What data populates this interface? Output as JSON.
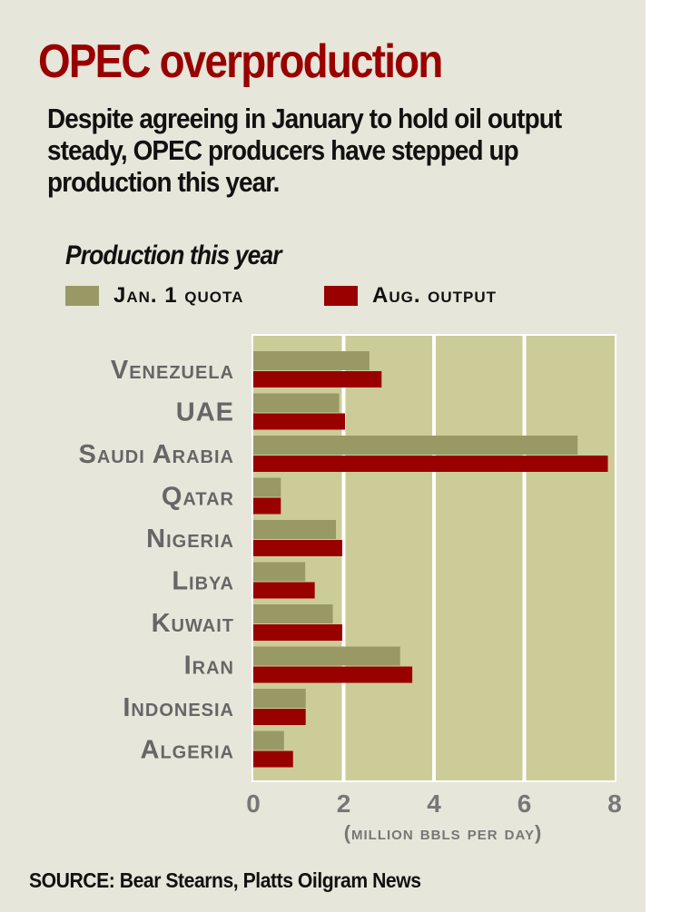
{
  "title": "OPEC overproduction",
  "subtitle": "Despite agreeing in January to hold oil output steady, OPEC producers have stepped up production this year.",
  "source": "SOURCE: Bear Stearns, Platts Oilgram News",
  "colors": {
    "background": "#e6e6da",
    "plot": "#cccc99",
    "quota": "#999966",
    "output": "#990000",
    "title": "#990000",
    "axis_text": "#777777"
  },
  "chart_data": {
    "type": "bar",
    "orientation": "horizontal",
    "title": "Production this year",
    "categories": [
      "Venezuela",
      "UAE",
      "Saudi Arabia",
      "Qatar",
      "Nigeria",
      "Libya",
      "Kuwait",
      "Iran",
      "Indonesia",
      "Algeria"
    ],
    "series": [
      {
        "name": "Jan. 1 quota",
        "color": "#999966",
        "values": [
          2.57,
          1.9,
          7.18,
          0.61,
          1.83,
          1.15,
          1.76,
          3.25,
          1.16,
          0.68
        ]
      },
      {
        "name": "Aug. output",
        "color": "#990000",
        "values": [
          2.84,
          2.03,
          7.85,
          0.61,
          1.97,
          1.36,
          1.97,
          3.52,
          1.16,
          0.88
        ]
      }
    ],
    "xlabel": "(million bbls per day)",
    "xlim": [
      0,
      8
    ],
    "xticks": [
      "0",
      "2",
      "4",
      "6",
      "8"
    ],
    "grid": true,
    "legend_position": "top-left"
  }
}
